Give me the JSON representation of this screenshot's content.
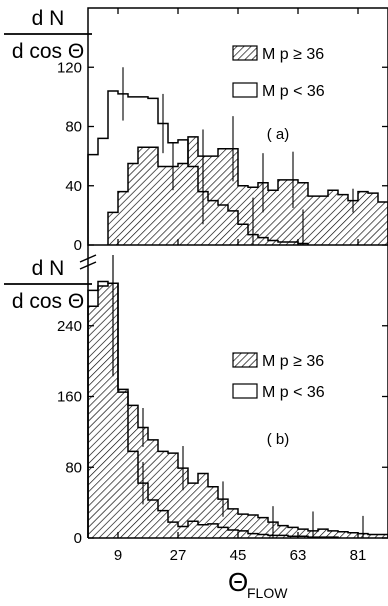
{
  "figure": {
    "x_title": "Θ",
    "x_title_subscript": "FLOW",
    "x_tick_labels": [
      "9",
      "27",
      "45",
      "63",
      "81"
    ]
  },
  "chart_data": [
    {
      "type": "histogram",
      "panel_label": "( a)",
      "ylabel_numerator": "d N",
      "ylabel_denominator": "d cos Θ",
      "xlim": [
        0,
        90
      ],
      "ylim": [
        0,
        160
      ],
      "x_ticks": [
        9,
        27,
        45,
        63,
        81
      ],
      "y_ticks": [
        0,
        40,
        80,
        120
      ],
      "y_tick_labels": [
        "0",
        "40",
        "80",
        "120"
      ],
      "legend_position": "top-right",
      "bin_width": 3,
      "series": [
        {
          "name": "M_p ≥ 36",
          "legend_label": "M p ≥ 36",
          "style": "hatched",
          "x_start": 6,
          "values": [
            22,
            36,
            55,
            66,
            66,
            53,
            53,
            55,
            73,
            60,
            60,
            65,
            65,
            40,
            39,
            42,
            37,
            44,
            44,
            42,
            33,
            33,
            37,
            34,
            30,
            36,
            35,
            29
          ],
          "error_bars": [
            [
              6,
              16
            ],
            [
              9,
              18
            ],
            [
              12,
              22
            ],
            [
              15,
              20
            ],
            [
              18,
              19
            ],
            [
              24,
              8
            ],
            [
              31,
              13
            ],
            [
              36,
              14
            ],
            [
              42,
              13
            ],
            [
              47,
              10
            ]
          ]
        },
        {
          "name": "M_p < 36",
          "legend_label": "M p < 36",
          "style": "open",
          "x_start": 0,
          "values": [
            61,
            72,
            104,
            102,
            100,
            100,
            99,
            82,
            69,
            71,
            53,
            36,
            30,
            27,
            23,
            14,
            7,
            5,
            3,
            2,
            2,
            1
          ],
          "error_bars": [
            [
              3,
              18
            ],
            [
              7,
              20
            ],
            [
              11,
              22
            ],
            [
              16,
              25
            ],
            [
              21,
              23
            ],
            [
              28,
              15
            ],
            [
              33,
              13
            ]
          ]
        }
      ]
    },
    {
      "type": "histogram",
      "panel_label": "( b)",
      "ylabel_numerator": "d N",
      "ylabel_denominator": "d cos Θ",
      "xlim": [
        0,
        90
      ],
      "ylim": [
        0,
        320
      ],
      "x_ticks": [
        9,
        27,
        45,
        63,
        81
      ],
      "y_ticks": [
        0,
        80,
        160,
        240
      ],
      "y_tick_labels": [
        "0",
        "80",
        "160",
        "240"
      ],
      "legend_position": "top-right",
      "bin_width": 3,
      "series": [
        {
          "name": "M_p ≥ 36",
          "legend_label": "M p ≥ 36",
          "style": "hatched",
          "x_start": 0,
          "values": [
            262,
            285,
            288,
            168,
            150,
            125,
            111,
            98,
            96,
            79,
            62,
            73,
            58,
            44,
            33,
            27,
            26,
            23,
            18,
            14,
            12,
            10,
            8,
            10,
            8,
            7,
            6,
            5,
            4,
            4
          ],
          "error_bars": [
            [
              2,
              105
            ],
            [
              5,
              22
            ],
            [
              9,
              25
            ],
            [
              13,
              20
            ],
            [
              18,
              18
            ],
            [
              22,
              22
            ],
            [
              27,
              20
            ],
            [
              33,
              16
            ],
            [
              38,
              14
            ],
            [
              49,
              12
            ]
          ]
        },
        {
          "name": "M_p < 36",
          "legend_label": "M p < 36",
          "style": "open",
          "x_start": 0,
          "values": [
            280,
            290,
            288,
            165,
            98,
            62,
            43,
            31,
            18,
            13,
            19,
            15,
            16,
            12,
            9,
            8,
            5,
            4,
            3,
            3,
            2,
            2,
            1,
            1,
            1
          ],
          "error_bars": [
            [
              2,
              105
            ],
            [
              5,
              24
            ]
          ]
        }
      ]
    }
  ]
}
